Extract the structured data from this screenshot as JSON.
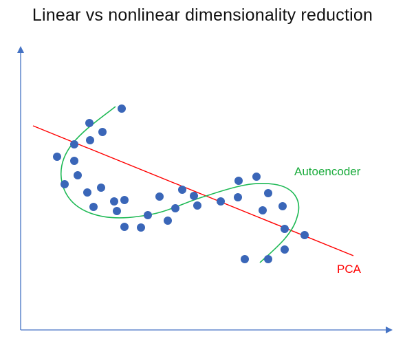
{
  "title": "Linear vs nonlinear dimensionality reduction",
  "labels": {
    "autoencoder": "Autoencoder",
    "pca": "PCA"
  },
  "colors": {
    "axis": "#4472c4",
    "points": "#3a66b8",
    "pca_line": "#ff0000",
    "autoencoder_curve": "#1db954",
    "autoencoder_label": "#1aab3c",
    "pca_label": "#ff0000"
  }
}
